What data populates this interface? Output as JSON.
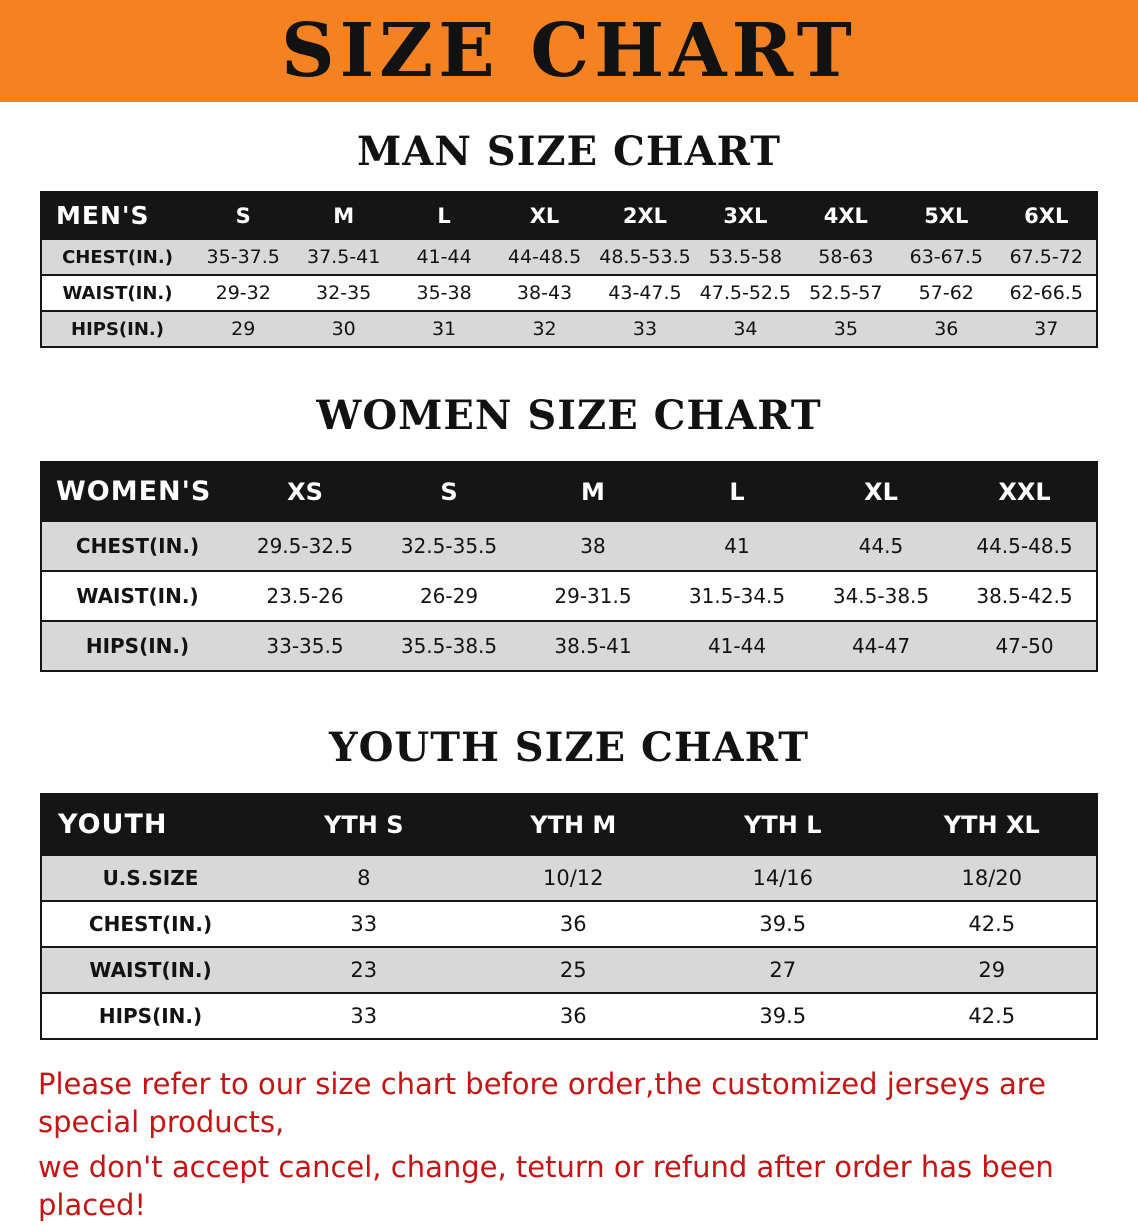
{
  "banner": {
    "title": "SIZE CHART"
  },
  "sections": [
    {
      "heading": "MAN SIZE CHART",
      "table": {
        "header": [
          "MEN'S",
          "S",
          "M",
          "L",
          "XL",
          "2XL",
          "3XL",
          "4XL",
          "5XL",
          "6XL"
        ],
        "rows": [
          [
            "CHEST(IN.)",
            "35-37.5",
            "37.5-41",
            "41-44",
            "44-48.5",
            "48.5-53.5",
            "53.5-58",
            "58-63",
            "63-67.5",
            "67.5-72"
          ],
          [
            "WAIST(IN.)",
            "29-32",
            "32-35",
            "35-38",
            "38-43",
            "43-47.5",
            "47.5-52.5",
            "52.5-57",
            "57-62",
            "62-66.5"
          ],
          [
            "HIPS(IN.)",
            "29",
            "30",
            "31",
            "32",
            "33",
            "34",
            "35",
            "36",
            "37"
          ]
        ]
      }
    },
    {
      "heading": "WOMEN SIZE CHART",
      "table": {
        "header": [
          "WOMEN'S",
          "XS",
          "S",
          "M",
          "L",
          "XL",
          "XXL"
        ],
        "rows": [
          [
            "CHEST(IN.)",
            "29.5-32.5",
            "32.5-35.5",
            "38",
            "41",
            "44.5",
            "44.5-48.5"
          ],
          [
            "WAIST(IN.)",
            "23.5-26",
            "26-29",
            "29-31.5",
            "31.5-34.5",
            "34.5-38.5",
            "38.5-42.5"
          ],
          [
            "HIPS(IN.)",
            "33-35.5",
            "35.5-38.5",
            "38.5-41",
            "41-44",
            "44-47",
            "47-50"
          ]
        ]
      }
    },
    {
      "heading": "YOUTH SIZE CHART",
      "table": {
        "header": [
          "YOUTH",
          "YTH S",
          "YTH M",
          "YTH L",
          "YTH XL"
        ],
        "rows": [
          [
            "U.S.SIZE",
            "8",
            "10/12",
            "14/16",
            "18/20"
          ],
          [
            "CHEST(IN.)",
            "33",
            "36",
            "39.5",
            "42.5"
          ],
          [
            "WAIST(IN.)",
            "23",
            "25",
            "27",
            "29"
          ],
          [
            "HIPS(IN.)",
            "33",
            "36",
            "39.5",
            "42.5"
          ]
        ]
      }
    }
  ],
  "footnote": {
    "lines": [
      "Please refer to our size chart before order,the customized jerseys are special products,",
      "we don't accept cancel, change, teturn or refund after order has been placed!"
    ]
  },
  "colors": {
    "banner_bg": "#f58220",
    "table_header_bg": "#151515",
    "row_shade": "#d8d8d8",
    "footnote_red": "#c41414"
  }
}
